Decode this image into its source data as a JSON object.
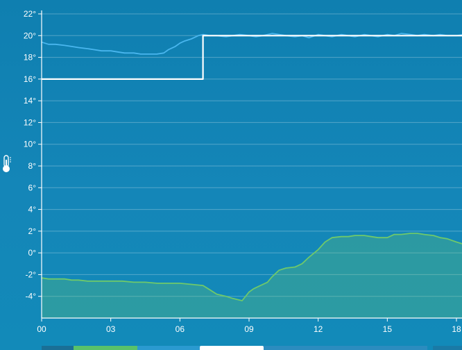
{
  "chart_data": {
    "type": "line",
    "ylim": [
      -6,
      22
    ],
    "xlim": [
      0,
      18.3
    ],
    "grid": true,
    "y_ticks": [
      "22°",
      "20°",
      "18°",
      "16°",
      "14°",
      "12°",
      "10°",
      "8°",
      "6°",
      "4°",
      "2°",
      "0°",
      "-2°",
      "-4°"
    ],
    "y_tick_values": [
      22,
      20,
      18,
      16,
      14,
      12,
      10,
      8,
      6,
      4,
      2,
      0,
      -2,
      -4
    ],
    "x_ticks": [
      "00",
      "03",
      "06",
      "09",
      "12",
      "15",
      "18"
    ],
    "x_tick_values": [
      0,
      3,
      6,
      9,
      12,
      15,
      18
    ],
    "series": [
      {
        "color": "#49b6ee",
        "x": [
          0,
          0.3,
          0.6,
          1,
          1.3,
          1.6,
          2,
          2.3,
          2.6,
          3,
          3.3,
          3.6,
          4,
          4.3,
          4.6,
          5,
          5.3,
          5.5,
          5.8,
          6,
          6.2,
          6.5,
          6.8,
          7,
          7.3,
          7.6,
          8,
          8.3,
          8.6,
          9,
          9.3,
          9.6,
          10,
          10.3,
          10.6,
          11,
          11.3,
          11.6,
          12,
          12.3,
          12.6,
          13,
          13.3,
          13.6,
          14,
          14.3,
          14.6,
          15,
          15.3,
          15.6,
          16,
          16.3,
          16.6,
          17,
          17.3,
          17.6,
          18,
          18.3
        ],
        "values": [
          19.4,
          19.2,
          19.2,
          19.1,
          19.0,
          18.9,
          18.8,
          18.7,
          18.6,
          18.6,
          18.5,
          18.4,
          18.4,
          18.3,
          18.3,
          18.3,
          18.4,
          18.7,
          19.0,
          19.3,
          19.5,
          19.7,
          20.0,
          20.1,
          20.0,
          20.0,
          19.9,
          20.0,
          20.1,
          20.0,
          19.9,
          20.0,
          20.2,
          20.1,
          20.0,
          19.9,
          20.0,
          19.8,
          20.1,
          20.0,
          19.9,
          20.1,
          20.0,
          19.9,
          20.1,
          20.0,
          19.9,
          20.1,
          20.0,
          20.2,
          20.1,
          20.0,
          20.1,
          20.0,
          20.1,
          20.0,
          20.0,
          20.1
        ]
      },
      {
        "color": "#ffffff",
        "step": true,
        "x": [
          0,
          7,
          7,
          18.3
        ],
        "values": [
          16,
          16,
          20,
          20
        ]
      },
      {
        "color": "#6fc96a",
        "area": true,
        "x": [
          0,
          0.3,
          0.6,
          1,
          1.3,
          1.6,
          2,
          2.5,
          3,
          3.5,
          4,
          4.5,
          5,
          5.5,
          6,
          6.5,
          7,
          7.3,
          7.6,
          8,
          8.3,
          8.5,
          8.7,
          9,
          9.2,
          9.5,
          9.8,
          10,
          10.3,
          10.6,
          11,
          11.3,
          11.6,
          12,
          12.3,
          12.6,
          13,
          13.3,
          13.6,
          14,
          14.3,
          14.6,
          15,
          15.3,
          15.6,
          16,
          16.3,
          16.6,
          17,
          17.3,
          17.6,
          18,
          18.3
        ],
        "values": [
          -2.3,
          -2.4,
          -2.4,
          -2.4,
          -2.5,
          -2.5,
          -2.6,
          -2.6,
          -2.6,
          -2.6,
          -2.7,
          -2.7,
          -2.8,
          -2.8,
          -2.8,
          -2.9,
          -3.0,
          -3.4,
          -3.8,
          -4.0,
          -4.2,
          -4.3,
          -4.4,
          -3.6,
          -3.3,
          -3.0,
          -2.7,
          -2.2,
          -1.6,
          -1.4,
          -1.3,
          -1.0,
          -0.4,
          0.3,
          1.0,
          1.4,
          1.5,
          1.5,
          1.6,
          1.6,
          1.5,
          1.4,
          1.4,
          1.7,
          1.7,
          1.8,
          1.8,
          1.7,
          1.6,
          1.4,
          1.3,
          1.0,
          0.8
        ]
      }
    ]
  },
  "thermometer_icon": "thermometer-icon",
  "bottom_strip": {
    "colors": [
      "#1a6f96",
      "#58c26a",
      "#2a9ad0",
      "#ffffff",
      "#2b8cbf",
      "#1a7aa6"
    ]
  }
}
